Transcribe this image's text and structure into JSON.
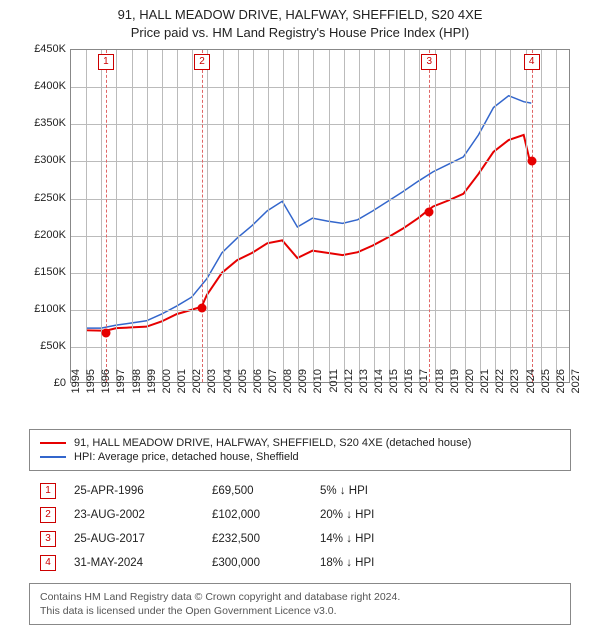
{
  "title": {
    "line1": "91, HALL MEADOW DRIVE, HALFWAY, SHEFFIELD, S20 4XE",
    "line2": "Price paid vs. HM Land Registry's House Price Index (HPI)"
  },
  "chart": {
    "type": "line",
    "background_color": "#ffffff",
    "grid_color": "#bbbbbb",
    "axis_color": "#888888",
    "x": {
      "min": 1994,
      "max": 2027,
      "ticks": [
        1994,
        1995,
        1996,
        1997,
        1998,
        1999,
        2000,
        2001,
        2002,
        2003,
        2004,
        2005,
        2006,
        2007,
        2008,
        2009,
        2010,
        2011,
        2012,
        2013,
        2014,
        2015,
        2016,
        2017,
        2018,
        2019,
        2020,
        2021,
        2022,
        2023,
        2024,
        2025,
        2026,
        2027
      ],
      "label_fontsize": 11
    },
    "y": {
      "min": 0,
      "max": 450000,
      "ticks": [
        0,
        50000,
        100000,
        150000,
        200000,
        250000,
        300000,
        350000,
        400000,
        450000
      ],
      "tick_labels": [
        "£0",
        "£50K",
        "£100K",
        "£150K",
        "£200K",
        "£250K",
        "£300K",
        "£350K",
        "£400K",
        "£450K"
      ],
      "label_fontsize": 11
    },
    "series": [
      {
        "name": "91, HALL MEADOW DRIVE, HALFWAY, SHEFFIELD, S20 4XE (detached house)",
        "color": "#e60000",
        "width": 2,
        "data": [
          [
            1995.0,
            70000
          ],
          [
            1996.3,
            69500
          ],
          [
            1997.0,
            73000
          ],
          [
            1998.0,
            74000
          ],
          [
            1999.0,
            75000
          ],
          [
            2000.0,
            82000
          ],
          [
            2001.0,
            92000
          ],
          [
            2002.0,
            98000
          ],
          [
            2002.65,
            102000
          ],
          [
            2003.0,
            118000
          ],
          [
            2004.0,
            148000
          ],
          [
            2005.0,
            165000
          ],
          [
            2006.0,
            175000
          ],
          [
            2007.0,
            188000
          ],
          [
            2008.0,
            192000
          ],
          [
            2009.0,
            168000
          ],
          [
            2010.0,
            178000
          ],
          [
            2011.0,
            175000
          ],
          [
            2012.0,
            172000
          ],
          [
            2013.0,
            176000
          ],
          [
            2014.0,
            185000
          ],
          [
            2015.0,
            196000
          ],
          [
            2016.0,
            208000
          ],
          [
            2017.0,
            222000
          ],
          [
            2017.65,
            232500
          ],
          [
            2018.0,
            238000
          ],
          [
            2019.0,
            246000
          ],
          [
            2020.0,
            255000
          ],
          [
            2021.0,
            282000
          ],
          [
            2022.0,
            312000
          ],
          [
            2023.0,
            328000
          ],
          [
            2024.0,
            335000
          ],
          [
            2024.4,
            300000
          ]
        ]
      },
      {
        "name": "HPI: Average price, detached house, Sheffield",
        "color": "#3366cc",
        "width": 1.5,
        "data": [
          [
            1995.0,
            73000
          ],
          [
            1996.0,
            73000
          ],
          [
            1997.0,
            77000
          ],
          [
            1998.0,
            80000
          ],
          [
            1999.0,
            83000
          ],
          [
            2000.0,
            92000
          ],
          [
            2001.0,
            103000
          ],
          [
            2002.0,
            115000
          ],
          [
            2003.0,
            140000
          ],
          [
            2004.0,
            175000
          ],
          [
            2005.0,
            195000
          ],
          [
            2006.0,
            212000
          ],
          [
            2007.0,
            232000
          ],
          [
            2008.0,
            245000
          ],
          [
            2009.0,
            210000
          ],
          [
            2010.0,
            222000
          ],
          [
            2011.0,
            218000
          ],
          [
            2012.0,
            215000
          ],
          [
            2013.0,
            220000
          ],
          [
            2014.0,
            232000
          ],
          [
            2015.0,
            245000
          ],
          [
            2016.0,
            258000
          ],
          [
            2017.0,
            272000
          ],
          [
            2018.0,
            285000
          ],
          [
            2019.0,
            295000
          ],
          [
            2020.0,
            305000
          ],
          [
            2021.0,
            335000
          ],
          [
            2022.0,
            372000
          ],
          [
            2023.0,
            388000
          ],
          [
            2024.0,
            380000
          ],
          [
            2024.5,
            378000
          ]
        ]
      }
    ],
    "vlines_color": "#e06666",
    "markers": [
      {
        "n": "1",
        "year": 1996.3
      },
      {
        "n": "2",
        "year": 2002.65
      },
      {
        "n": "3",
        "year": 2017.65
      },
      {
        "n": "4",
        "year": 2024.4
      }
    ],
    "points": [
      {
        "year": 1996.3,
        "value": 69500,
        "color": "#e60000"
      },
      {
        "year": 2002.65,
        "value": 102000,
        "color": "#e60000"
      },
      {
        "year": 2017.65,
        "value": 232500,
        "color": "#e60000"
      },
      {
        "year": 2024.4,
        "value": 300000,
        "color": "#e60000"
      }
    ]
  },
  "legend": {
    "items": [
      {
        "label": "91, HALL MEADOW DRIVE, HALFWAY, SHEFFIELD, S20 4XE (detached house)",
        "color": "#e60000"
      },
      {
        "label": "HPI: Average price, detached house, Sheffield",
        "color": "#3366cc"
      }
    ]
  },
  "transactions": [
    {
      "n": "1",
      "date": "25-APR-1996",
      "price": "£69,500",
      "pct": "5% ↓ HPI"
    },
    {
      "n": "2",
      "date": "23-AUG-2002",
      "price": "£102,000",
      "pct": "20% ↓ HPI"
    },
    {
      "n": "3",
      "date": "25-AUG-2017",
      "price": "£232,500",
      "pct": "14% ↓ HPI"
    },
    {
      "n": "4",
      "date": "31-MAY-2024",
      "price": "£300,000",
      "pct": "18% ↓ HPI"
    }
  ],
  "footer": {
    "line1": "Contains HM Land Registry data © Crown copyright and database right 2024.",
    "line2": "This data is licensed under the Open Government Licence v3.0."
  }
}
